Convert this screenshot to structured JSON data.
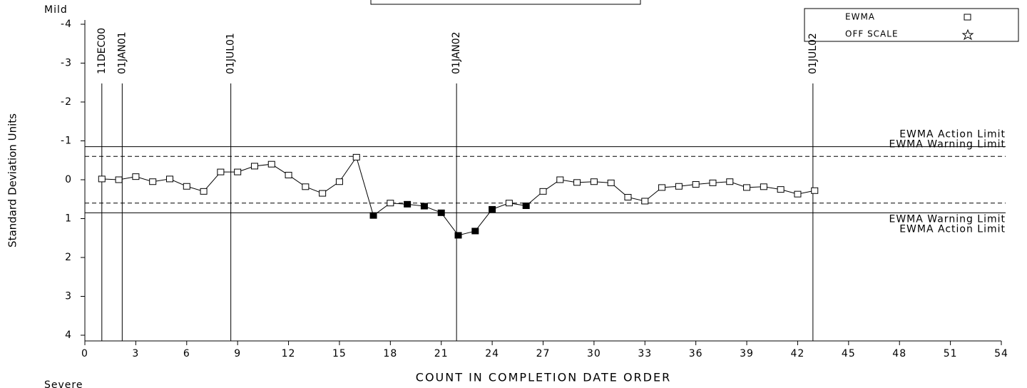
{
  "chart_data": {
    "type": "line",
    "top_label": "Mild",
    "bottom_label": "Severe",
    "y_label": "Standard Deviation Units",
    "x_label": "COUNT IN COMPLETION DATE ORDER",
    "xlim": [
      0,
      54
    ],
    "xticks": [
      0,
      3,
      6,
      9,
      12,
      15,
      18,
      21,
      24,
      27,
      30,
      33,
      36,
      39,
      42,
      45,
      48,
      51,
      54
    ],
    "ylim": [
      -4,
      4
    ],
    "y_reversed": true,
    "yticks": [
      -4,
      -3,
      -2,
      -1,
      0,
      1,
      2,
      3,
      4
    ],
    "x": [
      1,
      2,
      3,
      4,
      5,
      6,
      7,
      8,
      9,
      10,
      11,
      12,
      13,
      14,
      15,
      16,
      17,
      18,
      19,
      20,
      21,
      22,
      23,
      24,
      25,
      26,
      27,
      28,
      29,
      30,
      31,
      32,
      33,
      34,
      35,
      36,
      37,
      38,
      39,
      40,
      41,
      42,
      43
    ],
    "series": [
      {
        "name": "EWMA",
        "color": "#000000",
        "values": [
          -0.02,
          0.0,
          -0.08,
          0.05,
          -0.02,
          0.17,
          0.3,
          -0.2,
          -0.2,
          -0.35,
          -0.4,
          -0.12,
          0.18,
          0.35,
          0.05,
          -0.58,
          0.92,
          0.6,
          0.63,
          0.68,
          0.85,
          1.43,
          1.32,
          0.76,
          0.6,
          0.67,
          0.3,
          0.0,
          0.07,
          0.05,
          0.08,
          0.45,
          0.55,
          0.2,
          0.17,
          0.12,
          0.08,
          0.05,
          0.2,
          0.18,
          0.25,
          0.37,
          0.28
        ],
        "filled": [
          false,
          false,
          false,
          false,
          false,
          false,
          false,
          false,
          false,
          false,
          false,
          false,
          false,
          false,
          false,
          false,
          true,
          false,
          true,
          true,
          true,
          true,
          true,
          true,
          false,
          true,
          false,
          false,
          false,
          false,
          false,
          false,
          false,
          false,
          false,
          false,
          false,
          false,
          false,
          false,
          false,
          false,
          false
        ]
      }
    ],
    "legend_extra": "OFF SCALE",
    "limit_lines": [
      {
        "label": "EWMA Action Limit",
        "value": -0.85,
        "style": "solid"
      },
      {
        "label": "EWMA Warning Limit",
        "value": -0.6,
        "style": "dashed"
      },
      {
        "label": "EWMA Warning Limit",
        "value": 0.6,
        "style": "dashed"
      },
      {
        "label": "EWMA Action Limit",
        "value": 0.85,
        "style": "solid"
      }
    ],
    "date_lines": [
      {
        "label": "11DEC00",
        "value": 1.0
      },
      {
        "label": "01JAN01",
        "value": 2.2
      },
      {
        "label": "01JUL01",
        "value": 8.6
      },
      {
        "label": "01JAN02",
        "value": 21.9
      },
      {
        "label": "01JUL02",
        "value": 42.9
      }
    ]
  }
}
